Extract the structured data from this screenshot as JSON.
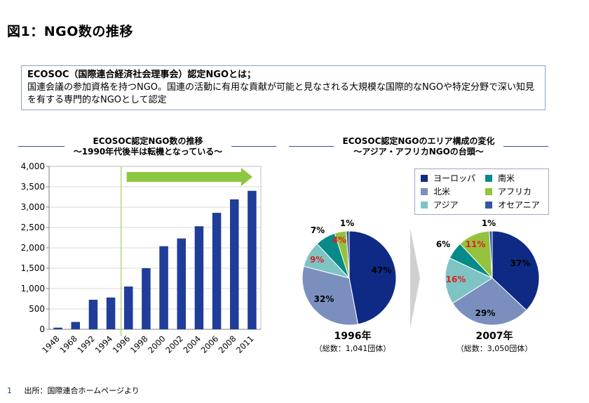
{
  "page": {
    "title": "図1：NGO数の推移",
    "definition_head": "ECOSOC（国際連合経済社会理事会）認定NGOとは；",
    "definition_body": "国連会議の参加資格を持つNGO。国連の活動に有用な貢献が可能と見なされる大規模な国際的なNGOや特定分野で深い知見を有する専門的なNGOとして認定",
    "footer_num": "1",
    "footer_text": "出所：国際連合ホームページより"
  },
  "chart_data": [
    {
      "type": "bar",
      "title": "ECOSOC認定NGO数の推移",
      "subtitle": "～1990年代後半は転機となっている～",
      "categories": [
        "1948",
        "1968",
        "1992",
        "1994",
        "1996",
        "1998",
        "2000",
        "2002",
        "2004",
        "2006",
        "2008",
        "2011"
      ],
      "values": [
        40,
        180,
        725,
        780,
        1050,
        1500,
        2040,
        2230,
        2530,
        2860,
        3190,
        3400
      ],
      "ylim": [
        0,
        4000
      ],
      "yticks": [
        "0",
        "500",
        "1,000",
        "1,500",
        "2,000",
        "2,500",
        "3,000",
        "3,500",
        "4,000"
      ],
      "bar_color": "#1f3d99",
      "arrow_color": "#8dc63f",
      "divider_color": "#b5d77a"
    },
    {
      "type": "pie",
      "title": "ECOSOC認定NGOのエリア構成の変化",
      "subtitle": "～アジア・アフリカNGOの台頭～",
      "legend": [
        {
          "name": "ヨーロッパ",
          "color": "#0e2a85"
        },
        {
          "name": "南米",
          "color": "#078b88"
        },
        {
          "name": "北米",
          "color": "#7b8fbf"
        },
        {
          "name": "アフリカ",
          "color": "#95c23d"
        },
        {
          "name": "アジア",
          "color": "#7fc4c4"
        },
        {
          "name": "オセアニア",
          "color": "#3556a8"
        }
      ],
      "pies": [
        {
          "year": "1996年",
          "total": "（総数：1,041団体）",
          "slices": [
            {
              "name": "ヨーロッパ",
              "value": 47,
              "label": "47%"
            },
            {
              "name": "北米",
              "value": 32,
              "label": "32%"
            },
            {
              "name": "アジア",
              "value": 9,
              "label": "9%"
            },
            {
              "name": "南米",
              "value": 7,
              "label": "7%"
            },
            {
              "name": "アフリカ",
              "value": 4,
              "label": "4%"
            },
            {
              "name": "オセアニア",
              "value": 1,
              "label": "1%"
            }
          ]
        },
        {
          "year": "2007年",
          "total": "（総数：3,050団体）",
          "slices": [
            {
              "name": "ヨーロッパ",
              "value": 37,
              "label": "37%"
            },
            {
              "name": "北米",
              "value": 29,
              "label": "29%"
            },
            {
              "name": "アジア",
              "value": 16,
              "label": "16%"
            },
            {
              "name": "南米",
              "value": 6,
              "label": "6%"
            },
            {
              "name": "アフリカ",
              "value": 11,
              "label": "11%"
            },
            {
              "name": "オセアニア",
              "value": 1,
              "label": "1%"
            }
          ]
        }
      ],
      "highlight_color": "#e02020"
    }
  ]
}
